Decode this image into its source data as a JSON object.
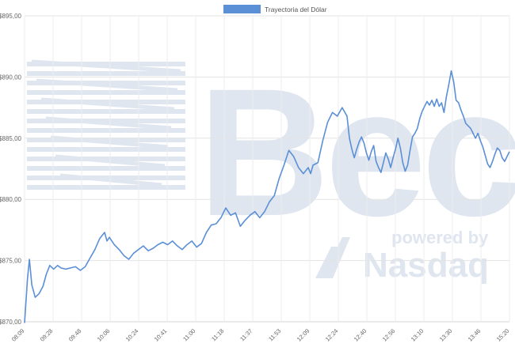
{
  "chart_data": {
    "type": "line",
    "title": "",
    "xlabel": "",
    "ylabel": "",
    "legend": {
      "position": "top-center"
    },
    "grid": true,
    "ylim": [
      870,
      895
    ],
    "y_ticks": [
      "$870,00",
      "$875,00",
      "$880,00",
      "$885,00",
      "$890,00",
      "$895,00"
    ],
    "x_ticks": [
      "08:09",
      "09:28",
      "09:48",
      "10:06",
      "10:24",
      "10:41",
      "11:00",
      "11:18",
      "11:37",
      "11:53",
      "12:09",
      "12:24",
      "12:40",
      "12:56",
      "13:10",
      "13:30",
      "13:46",
      "15:20"
    ],
    "series": [
      {
        "name": "Trayectoria del Dólar",
        "color": "#5b8fd6",
        "x_range": [
          0,
          100
        ],
        "x": [
          0,
          0.6,
          1.0,
          1.5,
          2.2,
          3.0,
          3.8,
          4.5,
          5.2,
          6.0,
          6.8,
          7.5,
          8.5,
          9.5,
          10.5,
          11.5,
          12.5,
          13.5,
          14.5,
          15.5,
          16.5,
          17.0,
          17.5,
          18.5,
          19.5,
          20.5,
          21.5,
          22.5,
          23.5,
          24.5,
          25.5,
          26.5,
          27.5,
          28.5,
          29.5,
          30.5,
          31.5,
          32.5,
          33.5,
          34.5,
          35.5,
          36.5,
          37.5,
          38.5,
          39.5,
          40.5,
          41.5,
          42.5,
          43.5,
          44.5,
          45.5,
          46.5,
          47.5,
          48.5,
          49.5,
          50.5,
          51.5,
          52.5,
          53.5,
          54.5,
          55.5,
          56.5,
          57.5,
          58.5,
          59.0,
          59.5,
          60.5,
          61.5,
          62.5,
          63.5,
          64.5,
          65.5,
          66.5,
          67.0,
          67.5,
          68.0,
          68.5,
          69.0,
          69.5,
          70.0,
          70.5,
          71.0,
          71.5,
          72.0,
          72.5,
          73.0,
          73.5,
          74.0,
          74.5,
          75.0,
          75.5,
          76.0,
          76.5,
          77.0,
          77.5,
          78.0,
          78.5,
          79.0,
          79.5,
          80.0,
          80.5,
          81.0,
          81.5,
          82.0,
          82.5,
          83.0,
          83.5,
          84.0,
          84.5,
          85.0,
          85.5,
          86.0,
          86.5,
          87.0,
          87.5,
          88.0,
          88.5,
          89.0,
          89.5,
          90.0,
          90.5,
          91.0,
          91.5,
          92.0,
          92.5,
          93.0,
          93.5,
          94.0,
          94.5,
          95.0,
          95.5,
          96.0,
          96.5,
          97.0,
          97.5,
          98.0,
          98.5,
          99.0,
          99.5,
          100
        ],
        "values": [
          869.9,
          873.5,
          875.1,
          873.0,
          872.0,
          872.3,
          872.9,
          873.9,
          874.6,
          874.3,
          874.6,
          874.4,
          874.3,
          874.4,
          874.5,
          874.2,
          874.5,
          875.2,
          875.9,
          876.8,
          877.3,
          876.6,
          876.9,
          876.3,
          875.9,
          875.4,
          875.1,
          875.6,
          875.9,
          876.2,
          875.8,
          876.0,
          876.3,
          876.5,
          876.3,
          876.6,
          876.2,
          875.9,
          876.3,
          876.6,
          876.1,
          876.4,
          877.3,
          877.9,
          878.0,
          878.5,
          879.3,
          878.7,
          878.9,
          877.8,
          878.3,
          878.7,
          879.0,
          878.5,
          879.0,
          879.8,
          880.3,
          881.7,
          882.8,
          884.0,
          883.5,
          882.6,
          882.1,
          882.6,
          882.1,
          882.8,
          883.0,
          884.8,
          886.3,
          887.1,
          886.8,
          887.5,
          886.8,
          885.0,
          884.1,
          883.4,
          884.1,
          884.7,
          885.1,
          884.6,
          883.8,
          883.2,
          883.9,
          884.4,
          883.1,
          882.6,
          882.2,
          883.0,
          883.8,
          883.3,
          882.6,
          883.4,
          884.1,
          885.0,
          884.2,
          883.0,
          882.3,
          882.8,
          884.0,
          885.1,
          885.4,
          885.8,
          886.6,
          887.2,
          887.6,
          888.0,
          887.7,
          888.1,
          887.6,
          888.2,
          887.6,
          887.9,
          887.1,
          888.4,
          889.4,
          890.5,
          889.6,
          888.1,
          887.9,
          887.3,
          886.8,
          886.2,
          886.0,
          885.8,
          885.4,
          885.0,
          885.4,
          884.8,
          884.3,
          883.6,
          882.9,
          882.6,
          883.1,
          883.7,
          884.2,
          884.0,
          883.4,
          883.1,
          883.5,
          883.9
        ]
      }
    ]
  },
  "watermark": {
    "text_main": "Bec",
    "text_sub": "powered by",
    "text_brand": "Nasdaq",
    "color": "#dfe6f0"
  }
}
